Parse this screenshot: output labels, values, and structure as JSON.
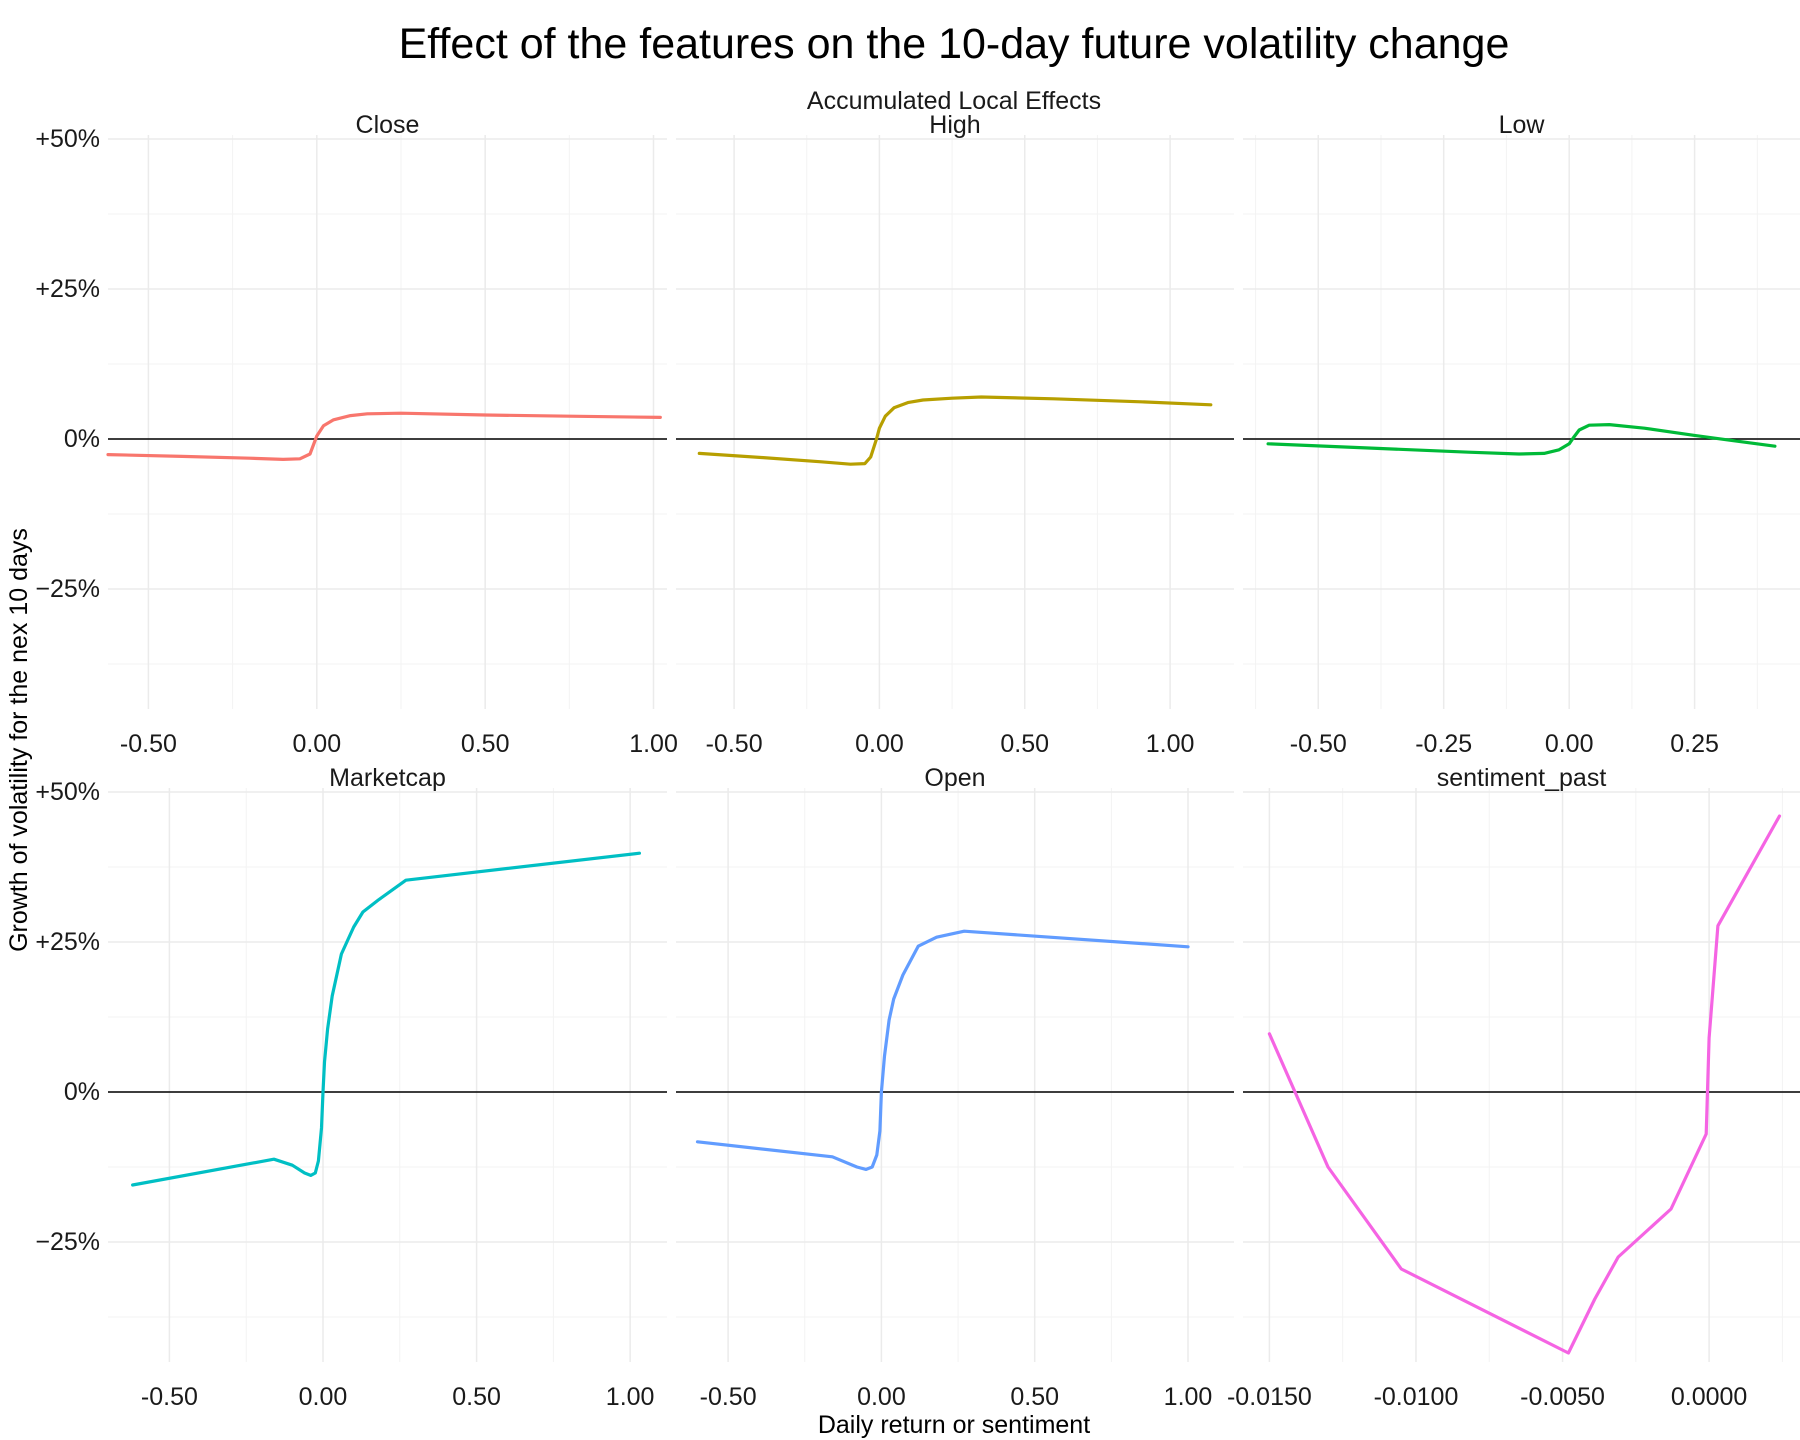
{
  "title": "Effect of the features on the 10-day future volatility change",
  "subtitle": "Accumulated Local Effects",
  "xlabel": "Daily return or sentiment",
  "ylabel": "Growth of volatility for the nex 10 days",
  "y_ticks": [
    "+50%",
    "+25%",
    "0%",
    "−25%"
  ],
  "chart_data": {
    "type": "line",
    "facet_grid": "2 rows x 3 columns, free x scales, shared y",
    "y_units": "percent",
    "ylim": [
      -45,
      50
    ],
    "y_tick_values": [
      50,
      25,
      0,
      -25
    ],
    "reference_line_y": 0,
    "grid": true,
    "legend": "none",
    "panels": [
      {
        "name": "Close",
        "color": "#F8766D",
        "xlim": [
          -0.62,
          1.04
        ],
        "x_tick_values": [
          -0.5,
          0,
          0.5,
          1.0
        ],
        "x_tick_labels": [
          "-0.50",
          "0.00",
          "0.50",
          "1.00"
        ],
        "x": [
          -0.62,
          -0.4,
          -0.2,
          -0.1,
          -0.05,
          -0.02,
          0.0,
          0.02,
          0.05,
          0.1,
          0.15,
          0.25,
          0.5,
          0.75,
          1.02
        ],
        "y": [
          -2.6,
          -2.9,
          -3.2,
          -3.4,
          -3.3,
          -2.5,
          0.5,
          2.2,
          3.2,
          3.9,
          4.2,
          4.3,
          4.0,
          3.8,
          3.6
        ]
      },
      {
        "name": "High",
        "color": "#B79F00",
        "xlim": [
          -0.7,
          1.22
        ],
        "x_tick_values": [
          -0.5,
          0,
          0.5,
          1.0
        ],
        "x_tick_labels": [
          "-0.50",
          "0.00",
          "0.50",
          "1.00"
        ],
        "x": [
          -0.62,
          -0.4,
          -0.2,
          -0.1,
          -0.05,
          -0.03,
          -0.01,
          0.0,
          0.02,
          0.05,
          0.1,
          0.15,
          0.25,
          0.35,
          0.6,
          0.9,
          1.14
        ],
        "y": [
          -2.4,
          -3.1,
          -3.8,
          -4.2,
          -4.1,
          -3.0,
          0.0,
          1.8,
          3.8,
          5.2,
          6.1,
          6.5,
          6.8,
          7.0,
          6.7,
          6.2,
          5.7
        ]
      },
      {
        "name": "Low",
        "color": "#00BA38",
        "xlim": [
          -0.65,
          0.46
        ],
        "x_tick_values": [
          -0.5,
          -0.25,
          0,
          0.25
        ],
        "x_tick_labels": [
          "-0.50",
          "-0.25",
          "0.00",
          "0.25"
        ],
        "x": [
          -0.6,
          -0.4,
          -0.2,
          -0.1,
          -0.05,
          -0.02,
          0.0,
          0.01,
          0.02,
          0.04,
          0.08,
          0.15,
          0.25,
          0.32,
          0.41
        ],
        "y": [
          -0.8,
          -1.5,
          -2.2,
          -2.5,
          -2.4,
          -1.8,
          -0.8,
          0.4,
          1.5,
          2.3,
          2.4,
          1.8,
          0.6,
          -0.2,
          -1.2
        ]
      },
      {
        "name": "Marketcap",
        "color": "#00BFC4",
        "xlim": [
          -0.7,
          1.12
        ],
        "x_tick_values": [
          -0.5,
          0,
          0.5,
          1.0
        ],
        "x_tick_labels": [
          "-0.50",
          "0.00",
          "0.50",
          "1.00"
        ],
        "x": [
          -0.62,
          -0.16,
          -0.1,
          -0.06,
          -0.04,
          -0.025,
          -0.015,
          -0.005,
          0.0,
          0.005,
          0.015,
          0.03,
          0.06,
          0.1,
          0.13,
          0.18,
          0.27,
          1.03
        ],
        "y": [
          -15.5,
          -11.2,
          -12.2,
          -13.5,
          -13.9,
          -13.5,
          -11.5,
          -6.0,
          0.0,
          5.0,
          10.5,
          16.0,
          23.0,
          27.5,
          30.0,
          32.0,
          35.3,
          39.8
        ]
      },
      {
        "name": "Open",
        "color": "#619CFF",
        "xlim": [
          -0.67,
          1.15
        ],
        "x_tick_values": [
          -0.5,
          0,
          0.5,
          1.0
        ],
        "x_tick_labels": [
          "-0.50",
          "0.00",
          "0.50",
          "1.00"
        ],
        "x": [
          -0.6,
          -0.16,
          -0.08,
          -0.05,
          -0.03,
          -0.015,
          -0.005,
          0.0,
          0.01,
          0.025,
          0.04,
          0.07,
          0.12,
          0.18,
          0.27,
          1.0
        ],
        "y": [
          -8.3,
          -10.8,
          -12.5,
          -12.9,
          -12.5,
          -10.5,
          -6.5,
          0.0,
          6.0,
          12.0,
          15.5,
          19.5,
          24.3,
          25.8,
          26.8,
          24.2
        ]
      },
      {
        "name": "sentiment_past",
        "color": "#F564E3",
        "xlim": [
          -0.0159,
          0.0031
        ],
        "x_tick_values": [
          -0.015,
          -0.01,
          -0.005,
          0.0
        ],
        "x_tick_labels": [
          "-0.0150",
          "-0.0100",
          "-0.0050",
          "0.0000"
        ],
        "x": [
          -0.015,
          -0.013,
          -0.0105,
          -0.0048,
          -0.0039,
          -0.0031,
          -0.0013,
          -0.0001,
          0.0,
          0.0003,
          0.0024
        ],
        "y": [
          9.7,
          -12.5,
          -29.5,
          -43.5,
          -34.5,
          -27.5,
          -19.5,
          -7.0,
          9.0,
          27.7,
          46.0
        ]
      }
    ]
  }
}
